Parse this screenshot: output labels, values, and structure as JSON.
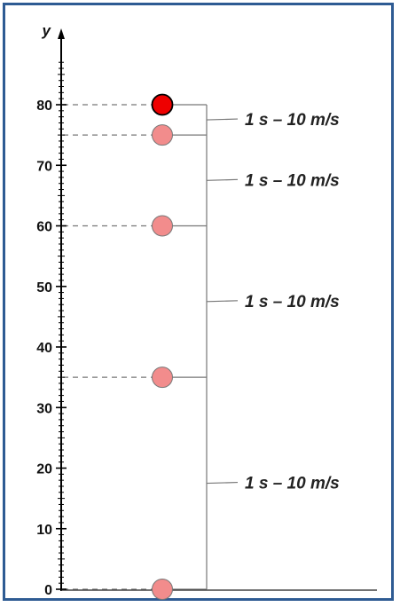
{
  "axis": {
    "label": "y",
    "min": 0,
    "max": 80,
    "major_ticks": [
      0,
      10,
      20,
      30,
      40,
      50,
      60,
      70,
      80
    ],
    "minor_step": 1
  },
  "positions": [
    {
      "y": 80,
      "color": "#ee0000",
      "highlight": true
    },
    {
      "y": 75,
      "color": "#f28c8c",
      "highlight": false
    },
    {
      "y": 60,
      "color": "#f28c8c",
      "highlight": false
    },
    {
      "y": 35,
      "color": "#f28c8c",
      "highlight": false
    },
    {
      "y": 0,
      "color": "#f28c8c",
      "highlight": false
    }
  ],
  "intervals": [
    {
      "from": 80,
      "to": 75,
      "label": "1 s – 10 m/s"
    },
    {
      "from": 75,
      "to": 60,
      "label": "1 s – 10 m/s"
    },
    {
      "from": 60,
      "to": 35,
      "label": "1 s – 10 m/s"
    },
    {
      "from": 35,
      "to": 0,
      "label": "1 s – 10 m/s"
    }
  ],
  "colors": {
    "frame": "#2e5b93",
    "axis": "#000000",
    "guide": "#777777",
    "ball_outline": "#777777",
    "ball_highlight_outline": "#000000"
  }
}
